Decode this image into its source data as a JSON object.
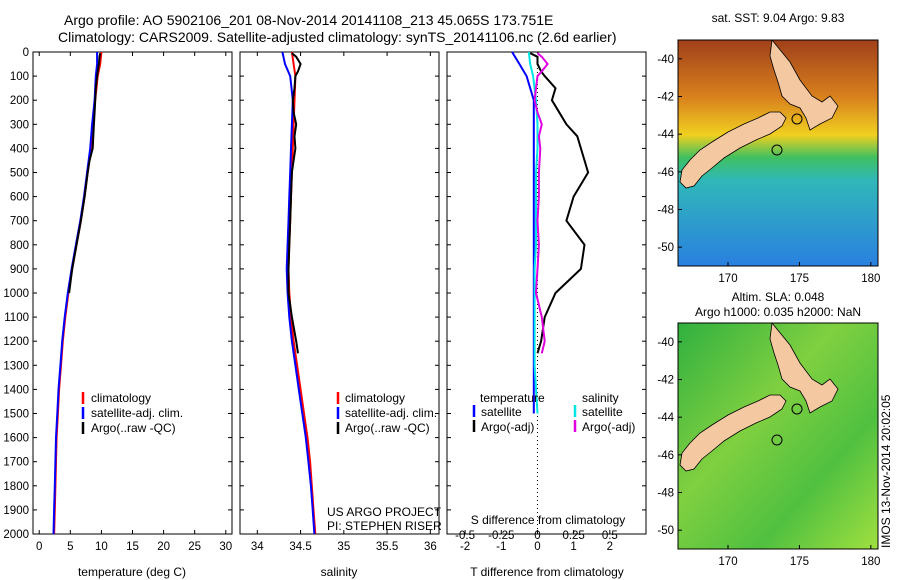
{
  "titles": {
    "line1": "Argo profile: AO 5902106_201 08-Nov-2014 20141108_213 45.065S 173.751E",
    "line2": "Climatology: CARS2009. Satellite-adjusted climatology: synTS_20141106.nc (2.6d earlier)"
  },
  "annotations": {
    "project": "US ARGO PROJECT",
    "pi": "PI: STEPHEN RISER",
    "map1_title": "sat. SST: 9.04  Argo: 9.83",
    "map2_title1": "Altim. SLA: 0.048",
    "map2_title2": "Argo h1000: 0.035  h2000: NaN",
    "timestamp": "IMOS 13-Nov-2014 20:02:05"
  },
  "colors": {
    "climatology": "#ff0000",
    "satellite": "#0000ff",
    "argo": "#000000",
    "satellite_s": "#00e5e5",
    "argo_s": "#e000e0",
    "land": "#f4c8a0"
  },
  "chart_data": [
    {
      "type": "line",
      "panel": "temperature",
      "xlabel": "temperature (deg C)",
      "ylabel": "",
      "xlim": [
        -1,
        31
      ],
      "ylim": [
        2000,
        0
      ],
      "xticks": [
        0,
        5,
        10,
        15,
        20,
        25,
        30
      ],
      "yticks": [
        0,
        100,
        200,
        300,
        400,
        500,
        600,
        700,
        800,
        900,
        1000,
        1100,
        1200,
        1300,
        1400,
        1500,
        1600,
        1700,
        1800,
        1900,
        2000
      ],
      "legend": [
        "climatology",
        "satellite-adj. clim.",
        "Argo(..raw -QC)"
      ],
      "series": [
        {
          "name": "climatology",
          "depth": [
            0,
            50,
            100,
            200,
            300,
            400,
            500,
            600,
            700,
            800,
            900,
            1000,
            1100,
            1200,
            1300,
            1400,
            1500,
            1600,
            1700,
            1800,
            1900,
            2000
          ],
          "values": [
            10.0,
            9.8,
            9.4,
            9.0,
            8.6,
            8.3,
            7.8,
            7.3,
            6.7,
            6.0,
            5.3,
            4.7,
            4.2,
            3.8,
            3.5,
            3.2,
            3.0,
            2.8,
            2.7,
            2.6,
            2.5,
            2.4
          ]
        },
        {
          "name": "satellite-adj. clim.",
          "depth": [
            0,
            50,
            100,
            200,
            300,
            400,
            500,
            600,
            700,
            800,
            900,
            1000,
            1100,
            1200,
            1300,
            1400,
            1500,
            1600,
            1700,
            1800,
            1900,
            2000
          ],
          "values": [
            9.3,
            9.3,
            9.1,
            8.9,
            8.5,
            8.2,
            7.7,
            7.2,
            6.6,
            5.9,
            5.2,
            4.6,
            4.1,
            3.7,
            3.4,
            3.1,
            2.9,
            2.7,
            2.6,
            2.5,
            2.4,
            2.3
          ]
        },
        {
          "name": "Argo(..raw -QC)",
          "depth": [
            5,
            20,
            50,
            80,
            100,
            150,
            200,
            250,
            300,
            350,
            400,
            450,
            500,
            600,
            700,
            800,
            900,
            1000
          ],
          "values": [
            9.8,
            9.7,
            9.6,
            9.4,
            9.3,
            9.1,
            9.0,
            8.9,
            8.8,
            8.7,
            8.6,
            8.1,
            7.8,
            7.3,
            6.7,
            6.0,
            5.3,
            4.8
          ]
        }
      ]
    },
    {
      "type": "line",
      "panel": "salinity",
      "xlabel": "salinity",
      "ylabel": "",
      "xlim": [
        33.8,
        36.1
      ],
      "ylim": [
        2000,
        0
      ],
      "xticks": [
        34,
        34.5,
        35,
        35.5,
        36
      ],
      "legend": [
        "climatology",
        "satellite-adj. clim.",
        "Argo(..raw -QC)"
      ],
      "series": [
        {
          "name": "climatology",
          "depth": [
            0,
            50,
            100,
            200,
            300,
            400,
            500,
            600,
            700,
            800,
            900,
            1000,
            1100,
            1200,
            1300,
            1400,
            1500,
            1600,
            1700,
            1800,
            1900,
            2000
          ],
          "values": [
            34.4,
            34.42,
            34.44,
            34.43,
            34.42,
            34.41,
            34.4,
            34.39,
            34.38,
            34.37,
            34.36,
            34.37,
            34.39,
            34.42,
            34.46,
            34.5,
            34.54,
            34.58,
            34.61,
            34.63,
            34.65,
            34.67
          ]
        },
        {
          "name": "satellite-adj. clim.",
          "depth": [
            0,
            50,
            100,
            200,
            300,
            400,
            500,
            600,
            700,
            800,
            900,
            1000,
            1100,
            1200,
            1300,
            1400,
            1500,
            1600,
            1700,
            1800,
            1900,
            2000
          ],
          "values": [
            34.29,
            34.32,
            34.38,
            34.41,
            34.4,
            34.39,
            34.38,
            34.37,
            34.36,
            34.35,
            34.34,
            34.35,
            34.37,
            34.4,
            34.44,
            34.48,
            34.52,
            34.56,
            34.59,
            34.62,
            34.64,
            34.66
          ]
        },
        {
          "name": "Argo(..raw -QC)",
          "depth": [
            5,
            20,
            50,
            80,
            100,
            150,
            200,
            250,
            300,
            350,
            400,
            450,
            500,
            600,
            700,
            800,
            900,
            1000,
            1100,
            1200,
            1250
          ],
          "values": [
            34.4,
            34.45,
            34.5,
            34.47,
            34.44,
            34.43,
            34.41,
            34.42,
            34.45,
            34.43,
            34.44,
            34.42,
            34.4,
            34.39,
            34.38,
            34.37,
            34.36,
            34.36,
            34.4,
            34.45,
            34.47
          ]
        }
      ]
    },
    {
      "type": "line",
      "panel": "difference",
      "xlabel": "T difference from climatology",
      "x2label": "S difference from climatology",
      "xlim": [
        -2.5,
        3
      ],
      "ylim": [
        2000,
        0
      ],
      "xticks": [
        -2,
        -1,
        0,
        1,
        2
      ],
      "x2ticks": [
        "-0.5",
        "-0.25",
        "0",
        "0.25",
        "0.5"
      ],
      "legend_headers": [
        "temperature",
        "salinity"
      ],
      "legend": [
        "satellite",
        "Argo(-adj)",
        "satellite",
        "Argo(-adj)"
      ],
      "series": [
        {
          "name": "satellite",
          "depth": [
            0,
            50,
            100,
            200,
            300,
            400,
            500,
            600,
            700,
            800,
            900,
            1000,
            1100,
            1200,
            1300,
            1400,
            1500
          ],
          "values": [
            -0.7,
            -0.5,
            -0.3,
            -0.1,
            -0.1,
            -0.1,
            -0.1,
            -0.1,
            -0.1,
            -0.1,
            -0.1,
            -0.1,
            -0.1,
            -0.1,
            -0.1,
            -0.1,
            -0.1
          ]
        },
        {
          "name": "Argo(-adj)",
          "depth": [
            5,
            20,
            50,
            80,
            100,
            150,
            200,
            250,
            300,
            350,
            400,
            450,
            500,
            600,
            700,
            800,
            900,
            1000,
            1100,
            1200,
            1250
          ],
          "values": [
            -0.2,
            0.0,
            0.0,
            0.1,
            0.2,
            0.5,
            0.4,
            0.6,
            0.8,
            1.1,
            1.2,
            1.3,
            1.4,
            1.0,
            0.8,
            1.3,
            1.2,
            0.5,
            0.2,
            0.1,
            0.0
          ]
        },
        {
          "name": "satellite",
          "depth": [
            0,
            50,
            100,
            200,
            300,
            400,
            500,
            600,
            700,
            800,
            900,
            1000,
            1100,
            1200,
            1300,
            1400,
            1500
          ],
          "values": [
            -0.06,
            -0.05,
            -0.03,
            -0.01,
            0.0,
            0.0,
            -0.01,
            -0.01,
            -0.01,
            -0.01,
            -0.02,
            -0.02,
            -0.02,
            -0.02,
            -0.02,
            -0.01,
            0.0
          ]
        },
        {
          "name": "Argo(-adj)",
          "depth": [
            5,
            20,
            50,
            80,
            100,
            150,
            200,
            250,
            300,
            350,
            400,
            500,
            600,
            700,
            800,
            900,
            1000,
            1100,
            1200,
            1250
          ],
          "values": [
            0.0,
            0.03,
            0.07,
            0.03,
            0.0,
            -0.01,
            -0.02,
            0.0,
            0.03,
            0.01,
            0.02,
            0.01,
            0.01,
            0.0,
            0.01,
            0.0,
            -0.01,
            0.03,
            0.05,
            0.03
          ]
        }
      ]
    },
    {
      "type": "heatmap",
      "panel": "map-sst",
      "title": "sat. SST: 9.04  Argo: 9.83",
      "xlim": [
        166.5,
        180.5
      ],
      "ylim": [
        -51,
        -39
      ],
      "xticks": [
        170,
        175,
        180
      ],
      "yticks": [
        -40,
        -42,
        -44,
        -46,
        -48,
        -50
      ],
      "argo_position": [
        173.75,
        -45.07
      ]
    },
    {
      "type": "heatmap",
      "panel": "map-sla",
      "title": "Altim. SLA: 0.048",
      "subtitle": "Argo h1000: 0.035  h2000: NaN",
      "xlim": [
        166.5,
        180.5
      ],
      "ylim": [
        -51,
        -39
      ],
      "xticks": [
        170,
        175,
        180
      ],
      "yticks": [
        -40,
        -42,
        -44,
        -46,
        -48,
        -50
      ],
      "argo_position": [
        173.75,
        -45.07
      ]
    }
  ]
}
